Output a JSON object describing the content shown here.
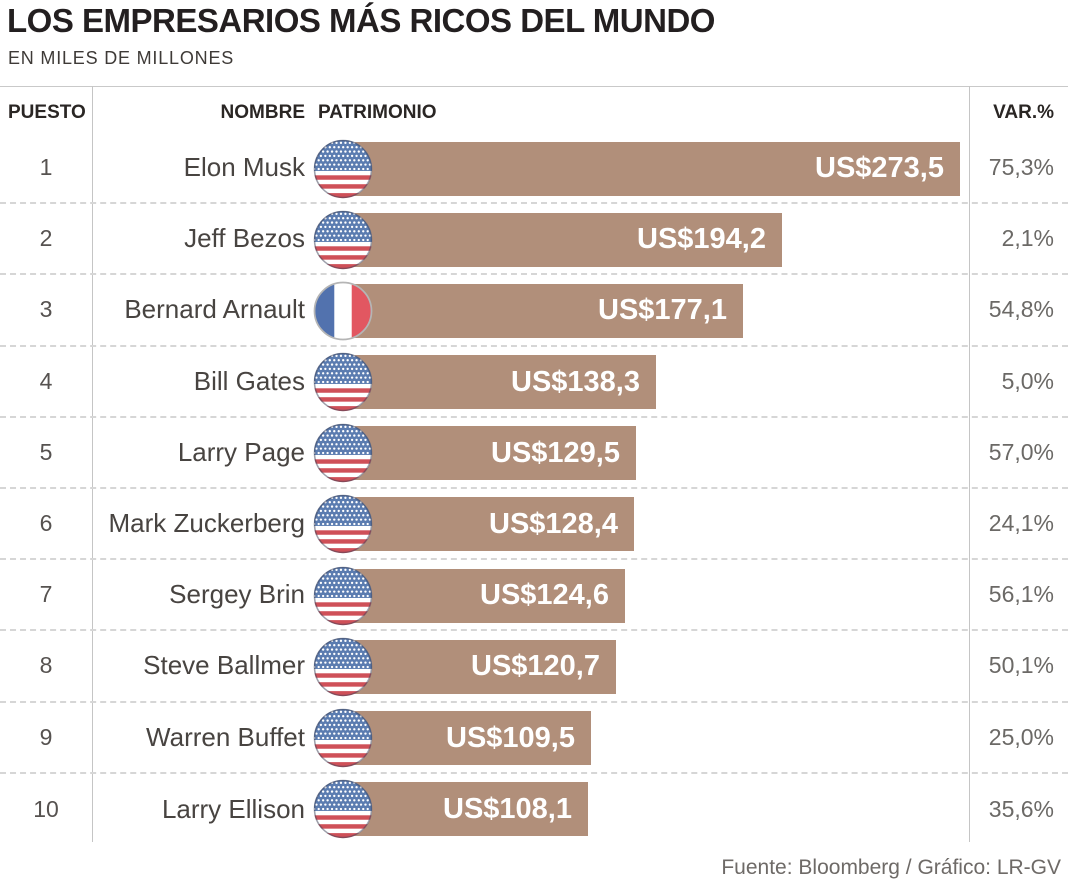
{
  "title": "LOS EMPRESARIOS MÁS RICOS DEL MUNDO",
  "subtitle": "EN MILES DE MILLONES",
  "columns": {
    "rank": "PUESTO",
    "name": "NOMBRE",
    "patrimony": "PATRIMONIO",
    "variation": "VAR.%"
  },
  "footer": "Fuente: Bloomberg / Gráfico: LR-GV",
  "colors": {
    "bar": "#b18f7a",
    "bar_text": "#ffffff",
    "title_text": "#231f20",
    "name_text": "#484441",
    "rank_text": "#565250",
    "var_text": "#6b6966",
    "footer_text": "#6e6a67",
    "rule": "#c5c5c5",
    "dash": "#d6d6d6",
    "usa_blue": "#5b7cb0",
    "usa_red": "#cf5058",
    "france_blue": "#5272ae",
    "france_red": "#e25761"
  },
  "chart_data": {
    "type": "bar",
    "orientation": "horizontal",
    "title": "LOS EMPRESARIOS MÁS RICOS DEL MUNDO",
    "subtitle": "EN MILES DE MILLONES",
    "unit": "US$ miles de millones",
    "value_axis_max": 273.5,
    "source": "Fuente: Bloomberg / Gráfico: LR-GV",
    "rows": [
      {
        "rank": "1",
        "name": "Elon Musk",
        "country_flag": "usa-flag-icon",
        "value": 273.5,
        "value_label": "US$273,5",
        "var_label": "75,3%"
      },
      {
        "rank": "2",
        "name": "Jeff Bezos",
        "country_flag": "usa-flag-icon",
        "value": 194.2,
        "value_label": "US$194,2",
        "var_label": "2,1%"
      },
      {
        "rank": "3",
        "name": "Bernard Arnault",
        "country_flag": "france-flag-icon",
        "value": 177.1,
        "value_label": "US$177,1",
        "var_label": "54,8%"
      },
      {
        "rank": "4",
        "name": "Bill Gates",
        "country_flag": "usa-flag-icon",
        "value": 138.3,
        "value_label": "US$138,3",
        "var_label": "5,0%"
      },
      {
        "rank": "5",
        "name": "Larry Page",
        "country_flag": "usa-flag-icon",
        "value": 129.5,
        "value_label": "US$129,5",
        "var_label": "57,0%"
      },
      {
        "rank": "6",
        "name": "Mark Zuckerberg",
        "country_flag": "usa-flag-icon",
        "value": 128.4,
        "value_label": "US$128,4",
        "var_label": "24,1%"
      },
      {
        "rank": "7",
        "name": "Sergey Brin",
        "country_flag": "usa-flag-icon",
        "value": 124.6,
        "value_label": "US$124,6",
        "var_label": "56,1%"
      },
      {
        "rank": "8",
        "name": "Steve Ballmer",
        "country_flag": "usa-flag-icon",
        "value": 120.7,
        "value_label": "US$120,7",
        "var_label": "50,1%"
      },
      {
        "rank": "9",
        "name": "Warren Buffet",
        "country_flag": "usa-flag-icon",
        "value": 109.5,
        "value_label": "US$109,5",
        "var_label": "25,0%"
      },
      {
        "rank": "10",
        "name": "Larry Ellison",
        "country_flag": "usa-flag-icon",
        "value": 108.1,
        "value_label": "US$108,1",
        "var_label": "35,6%"
      }
    ]
  }
}
